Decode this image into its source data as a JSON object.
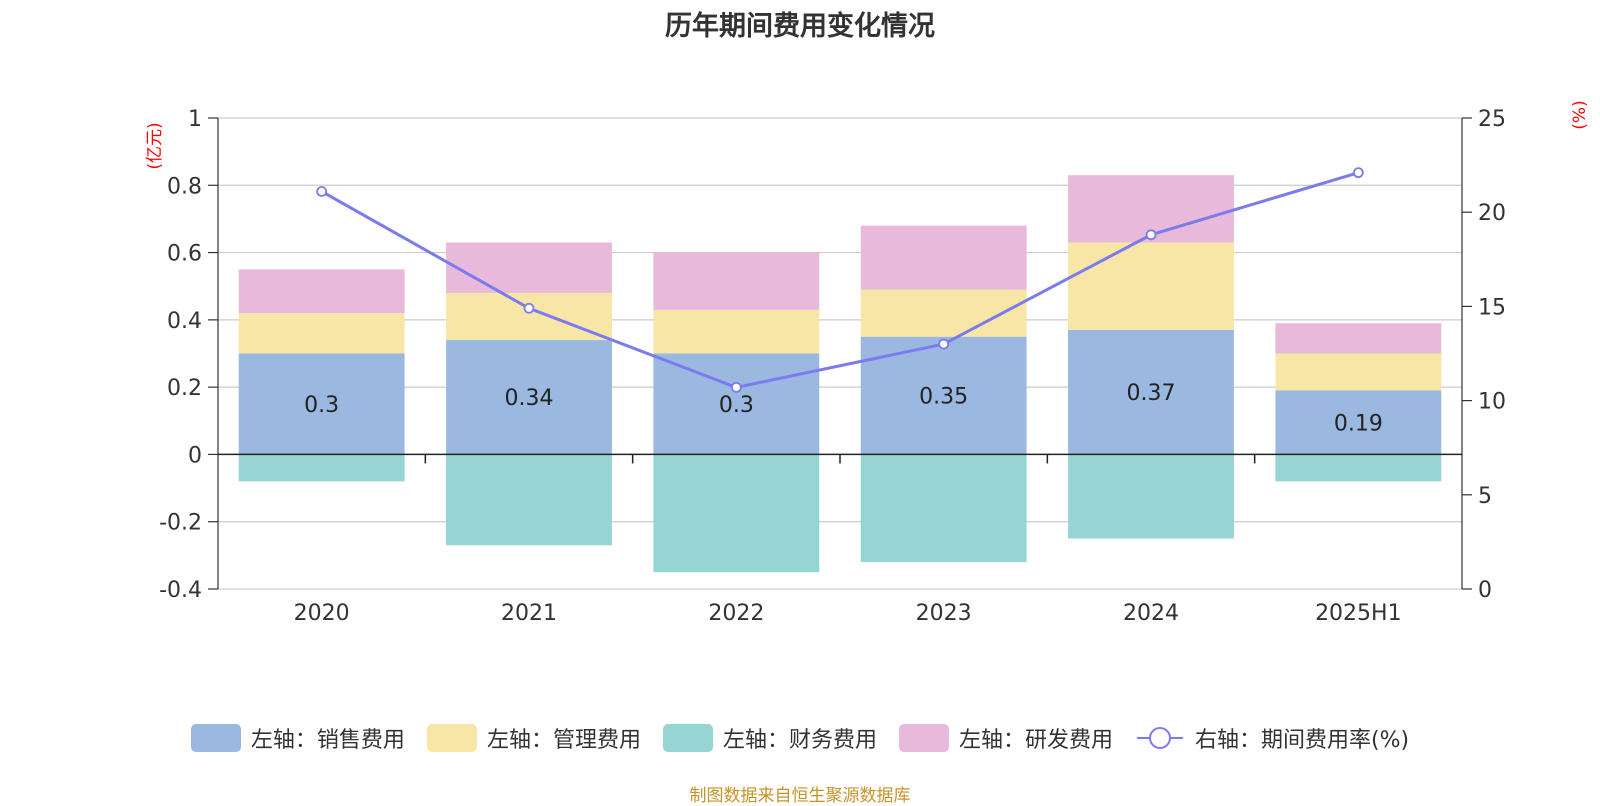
{
  "chart_data": {
    "type": "bar",
    "title": "历年期间费用变化情况",
    "categories": [
      "2020",
      "2021",
      "2022",
      "2023",
      "2024",
      "2025H1"
    ],
    "series": [
      {
        "name": "左轴：销售费用",
        "axis": "left",
        "stack": "total",
        "color": "#9bb8e0",
        "values": [
          0.3,
          0.34,
          0.3,
          0.35,
          0.37,
          0.19
        ],
        "show_labels": true
      },
      {
        "name": "左轴：管理费用",
        "axis": "left",
        "stack": "total",
        "color": "#f7e6a6",
        "values": [
          0.12,
          0.14,
          0.13,
          0.14,
          0.26,
          0.11
        ]
      },
      {
        "name": "左轴：财务费用",
        "axis": "left",
        "stack": "total",
        "color": "#97d4d4",
        "values": [
          -0.08,
          -0.27,
          -0.35,
          -0.32,
          -0.25,
          -0.08
        ]
      },
      {
        "name": "左轴：研发费用",
        "axis": "left",
        "stack": "total",
        "color": "#e8b9da",
        "values": [
          0.13,
          0.15,
          0.17,
          0.19,
          0.2,
          0.09
        ]
      },
      {
        "name": "右轴：期间费用率(%)",
        "axis": "right",
        "type": "line",
        "color": "#7b7bee",
        "values": [
          21.1,
          14.9,
          10.7,
          13.0,
          18.8,
          22.1
        ]
      }
    ],
    "y_left": {
      "unit": "(亿元)",
      "ylim": [
        -0.4,
        1
      ],
      "ticks": [
        "1",
        "0.8",
        "0.6",
        "0.4",
        "0.2",
        "0",
        "-0.2",
        "-0.4"
      ]
    },
    "y_right": {
      "unit": "(%)",
      "ylim": [
        0,
        25
      ],
      "ticks": [
        "25",
        "20",
        "15",
        "10",
        "5",
        "0"
      ]
    },
    "grid": true,
    "legend_position": "bottom",
    "source": "制图数据来自恒生聚源数据库"
  }
}
